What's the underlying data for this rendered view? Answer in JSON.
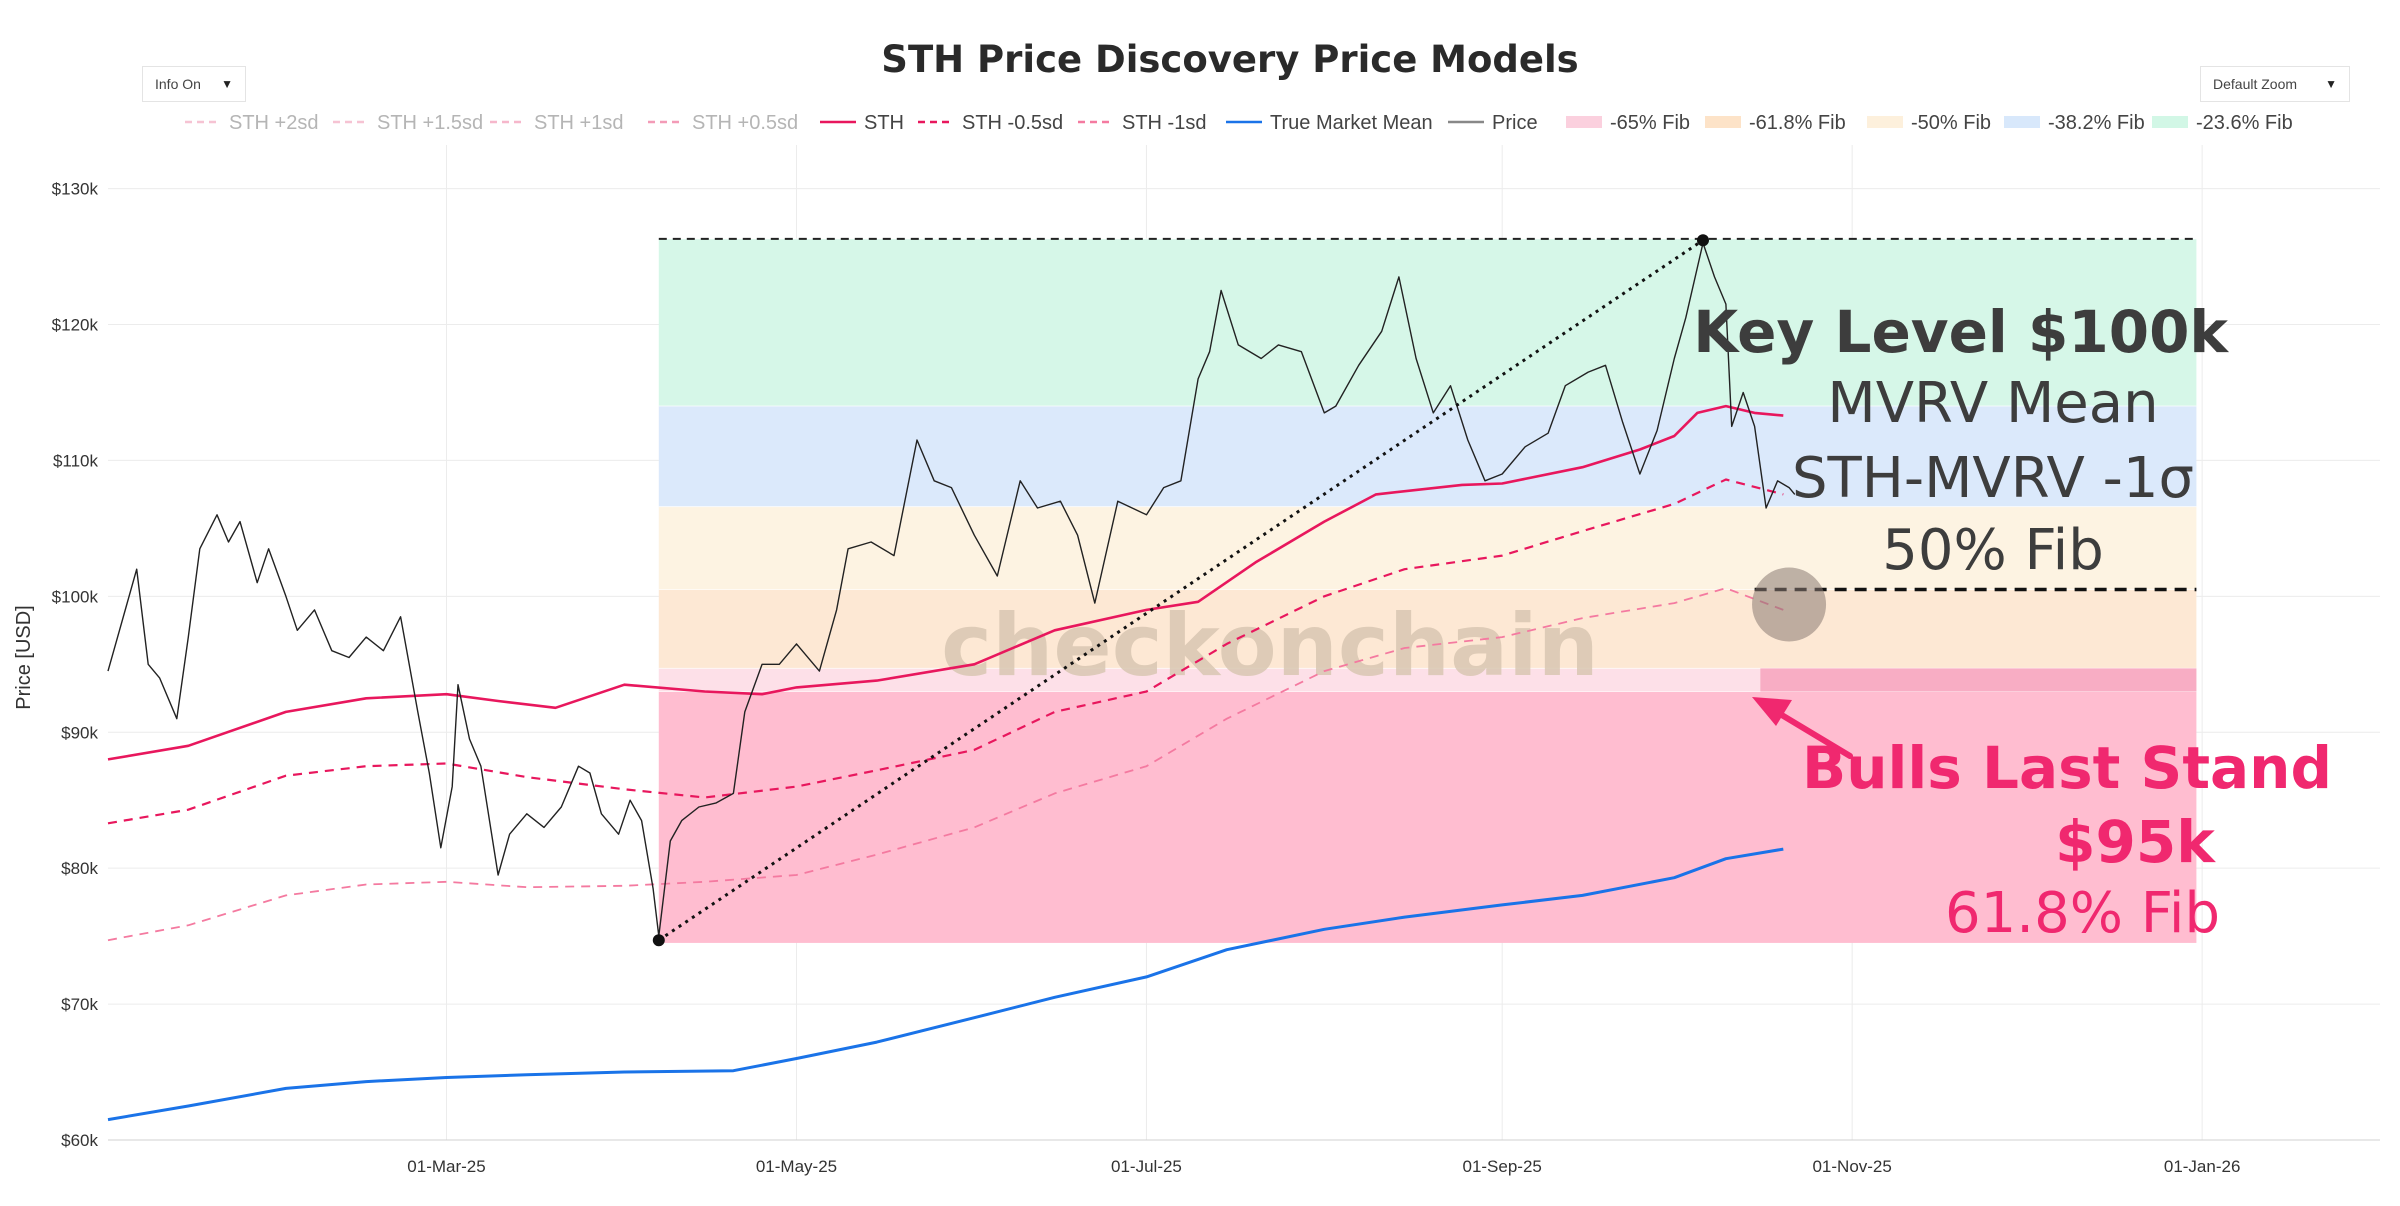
{
  "controls": {
    "info_toggle": "Info On",
    "zoom_select": "Default Zoom",
    "caret": "▼"
  },
  "colors": {
    "sth": "#e8175d",
    "sth_light": "#f47aa0",
    "sth_faded": "#f6b7cb",
    "true_market_mean": "#1a73e8",
    "price": "#222222",
    "fib_65": "#ffb8cc",
    "fib_618": "#fde3c8",
    "fib_50": "#fdf0dc",
    "fib_382": "#d8e8fb",
    "fib_236": "#d2f7e6",
    "annotation_pink": "#f0286f",
    "annotation_dark": "#3d3d3d"
  },
  "chart_data": {
    "type": "line",
    "title": "STH Price Discovery Price Models",
    "xlabel": "",
    "ylabel": "Price [USD]",
    "ylim": [
      60000,
      131000
    ],
    "x_range": [
      "2025-01-01",
      "2026-02-01"
    ],
    "y_ticks": [
      {
        "value": 60000,
        "label": "$60k"
      },
      {
        "value": 70000,
        "label": "$70k"
      },
      {
        "value": 80000,
        "label": "$80k"
      },
      {
        "value": 90000,
        "label": "$90k"
      },
      {
        "value": 100000,
        "label": "$100k"
      },
      {
        "value": 110000,
        "label": "$110k"
      },
      {
        "value": 120000,
        "label": "$120k"
      },
      {
        "value": 130000,
        "label": "$130k"
      }
    ],
    "x_ticks": [
      {
        "date": "2025-03-01",
        "label": "01-Mar-25"
      },
      {
        "date": "2025-05-01",
        "label": "01-May-25"
      },
      {
        "date": "2025-07-01",
        "label": "01-Jul-25"
      },
      {
        "date": "2025-09-01",
        "label": "01-Sep-25"
      },
      {
        "date": "2025-11-01",
        "label": "01-Nov-25"
      },
      {
        "date": "2026-01-01",
        "label": "01-Jan-26"
      }
    ],
    "legend": [
      {
        "label": "STH +2sd",
        "style": "dashed",
        "color": "#f6c3d3",
        "faded": true
      },
      {
        "label": "STH +1.5sd",
        "style": "dashed",
        "color": "#f6c3d3",
        "faded": true
      },
      {
        "label": "STH +1sd",
        "style": "dashed",
        "color": "#f6b7cb",
        "faded": true
      },
      {
        "label": "STH +0.5sd",
        "style": "dashed",
        "color": "#f39bb7",
        "faded": true
      },
      {
        "label": "STH",
        "style": "solid",
        "color": "#e8175d",
        "faded": false
      },
      {
        "label": "STH -0.5sd",
        "style": "dashed",
        "color": "#e8175d",
        "faded": false
      },
      {
        "label": "STH -1sd",
        "style": "dashed",
        "color": "#f47aa0",
        "faded": false
      },
      {
        "label": "True Market Mean",
        "style": "solid",
        "color": "#1a73e8",
        "faded": false
      },
      {
        "label": "Price",
        "style": "solid",
        "color": "#888888",
        "faded": false
      },
      {
        "label": "-65% Fib",
        "style": "box",
        "color": "#fbd0de",
        "faded": false
      },
      {
        "label": "-61.8% Fib",
        "style": "box",
        "color": "#fde3c8",
        "faded": false
      },
      {
        "label": "-50% Fib",
        "style": "box",
        "color": "#fdf0dc",
        "faded": false
      },
      {
        "label": "-38.2% Fib",
        "style": "box",
        "color": "#d8e8fb",
        "faded": false
      },
      {
        "label": "-23.6% Fib",
        "style": "box",
        "color": "#d2f7e6",
        "faded": false
      }
    ],
    "fib_zones": {
      "start": "2025-04-07",
      "end": "2025-12-31",
      "bands": [
        {
          "name": "-65% Fib",
          "from": 74500,
          "to": 93000,
          "color": "#ffbdd0"
        },
        {
          "name": "-61.8% Fib (pink strip)",
          "from": 93000,
          "to": 94700,
          "color": "#fde0e8"
        },
        {
          "name": "-61.8% Fib",
          "from": 94700,
          "to": 100500,
          "color": "#fde8d4"
        },
        {
          "name": "-50% Fib",
          "from": 100500,
          "to": 106600,
          "color": "#fdf3e2"
        },
        {
          "name": "-38.2% Fib",
          "from": 106600,
          "to": 114000,
          "color": "#dbe9fb"
        },
        {
          "name": "-23.6% Fib",
          "from": 114000,
          "to": 126300,
          "color": "#d6f7e8"
        }
      ],
      "top_line": 126300,
      "bottom_line": 74500
    },
    "series": [
      {
        "name": "STH",
        "style": "solid",
        "points": [
          [
            "2025-01-01",
            88000
          ],
          [
            "2025-01-15",
            89000
          ],
          [
            "2025-02-01",
            91500
          ],
          [
            "2025-02-15",
            92500
          ],
          [
            "2025-03-01",
            92800
          ],
          [
            "2025-03-10",
            92300
          ],
          [
            "2025-03-20",
            91800
          ],
          [
            "2025-04-01",
            93500
          ],
          [
            "2025-04-15",
            93000
          ],
          [
            "2025-04-25",
            92800
          ],
          [
            "2025-05-01",
            93300
          ],
          [
            "2025-05-15",
            93800
          ],
          [
            "2025-06-01",
            95000
          ],
          [
            "2025-06-15",
            97500
          ],
          [
            "2025-07-01",
            99000
          ],
          [
            "2025-07-10",
            99600
          ],
          [
            "2025-07-20",
            102500
          ],
          [
            "2025-08-01",
            105500
          ],
          [
            "2025-08-10",
            107500
          ],
          [
            "2025-08-25",
            108200
          ],
          [
            "2025-09-01",
            108300
          ],
          [
            "2025-09-15",
            109500
          ],
          [
            "2025-09-25",
            110800
          ],
          [
            "2025-10-01",
            111800
          ],
          [
            "2025-10-05",
            113500
          ],
          [
            "2025-10-10",
            114000
          ],
          [
            "2025-10-15",
            113500
          ],
          [
            "2025-10-20",
            113300
          ]
        ]
      },
      {
        "name": "STH -0.5sd",
        "style": "dashed",
        "points": [
          [
            "2025-01-01",
            83300
          ],
          [
            "2025-01-15",
            84300
          ],
          [
            "2025-02-01",
            86800
          ],
          [
            "2025-02-15",
            87500
          ],
          [
            "2025-03-01",
            87700
          ],
          [
            "2025-03-15",
            86700
          ],
          [
            "2025-04-01",
            85800
          ],
          [
            "2025-04-15",
            85200
          ],
          [
            "2025-05-01",
            86000
          ],
          [
            "2025-05-15",
            87200
          ],
          [
            "2025-06-01",
            88700
          ],
          [
            "2025-06-15",
            91500
          ],
          [
            "2025-07-01",
            93000
          ],
          [
            "2025-07-15",
            96500
          ],
          [
            "2025-08-01",
            100000
          ],
          [
            "2025-08-15",
            102000
          ],
          [
            "2025-09-01",
            103000
          ],
          [
            "2025-09-15",
            104800
          ],
          [
            "2025-10-01",
            106800
          ],
          [
            "2025-10-10",
            108600
          ],
          [
            "2025-10-20",
            107500
          ]
        ]
      },
      {
        "name": "STH -1sd",
        "style": "dashed",
        "points": [
          [
            "2025-01-01",
            74700
          ],
          [
            "2025-01-15",
            75800
          ],
          [
            "2025-02-01",
            78000
          ],
          [
            "2025-02-15",
            78800
          ],
          [
            "2025-03-01",
            79000
          ],
          [
            "2025-03-15",
            78600
          ],
          [
            "2025-04-01",
            78700
          ],
          [
            "2025-04-15",
            79000
          ],
          [
            "2025-05-01",
            79500
          ],
          [
            "2025-05-15",
            81000
          ],
          [
            "2025-06-01",
            83000
          ],
          [
            "2025-06-15",
            85500
          ],
          [
            "2025-07-01",
            87500
          ],
          [
            "2025-07-15",
            91000
          ],
          [
            "2025-08-01",
            94500
          ],
          [
            "2025-08-15",
            96200
          ],
          [
            "2025-09-01",
            97000
          ],
          [
            "2025-09-15",
            98400
          ],
          [
            "2025-10-01",
            99500
          ],
          [
            "2025-10-10",
            100600
          ],
          [
            "2025-10-20",
            99000
          ]
        ]
      },
      {
        "name": "True Market Mean",
        "style": "solid",
        "points": [
          [
            "2025-01-01",
            61500
          ],
          [
            "2025-01-15",
            62500
          ],
          [
            "2025-02-01",
            63800
          ],
          [
            "2025-02-15",
            64300
          ],
          [
            "2025-03-01",
            64600
          ],
          [
            "2025-03-15",
            64800
          ],
          [
            "2025-04-01",
            65000
          ],
          [
            "2025-04-20",
            65100
          ],
          [
            "2025-05-01",
            66000
          ],
          [
            "2025-05-15",
            67200
          ],
          [
            "2025-06-01",
            69000
          ],
          [
            "2025-06-15",
            70500
          ],
          [
            "2025-07-01",
            72000
          ],
          [
            "2025-07-15",
            74000
          ],
          [
            "2025-08-01",
            75500
          ],
          [
            "2025-08-15",
            76400
          ],
          [
            "2025-09-01",
            77300
          ],
          [
            "2025-09-15",
            78000
          ],
          [
            "2025-10-01",
            79300
          ],
          [
            "2025-10-10",
            80700
          ],
          [
            "2025-10-20",
            81400
          ]
        ]
      },
      {
        "name": "Price",
        "style": "solid",
        "points": [
          [
            "2025-01-01",
            94500
          ],
          [
            "2025-01-03",
            97500
          ],
          [
            "2025-01-06",
            102000
          ],
          [
            "2025-01-08",
            95000
          ],
          [
            "2025-01-10",
            94000
          ],
          [
            "2025-01-13",
            91000
          ],
          [
            "2025-01-15",
            97000
          ],
          [
            "2025-01-17",
            103500
          ],
          [
            "2025-01-20",
            106000
          ],
          [
            "2025-01-22",
            104000
          ],
          [
            "2025-01-24",
            105500
          ],
          [
            "2025-01-27",
            101000
          ],
          [
            "2025-01-29",
            103500
          ],
          [
            "2025-02-01",
            100000
          ],
          [
            "2025-02-03",
            97500
          ],
          [
            "2025-02-06",
            99000
          ],
          [
            "2025-02-09",
            96000
          ],
          [
            "2025-02-12",
            95500
          ],
          [
            "2025-02-15",
            97000
          ],
          [
            "2025-02-18",
            96000
          ],
          [
            "2025-02-21",
            98500
          ],
          [
            "2025-02-24",
            91500
          ],
          [
            "2025-02-26",
            87000
          ],
          [
            "2025-02-28",
            81500
          ],
          [
            "2025-03-02",
            86000
          ],
          [
            "2025-03-03",
            93500
          ],
          [
            "2025-03-05",
            89500
          ],
          [
            "2025-03-07",
            87500
          ],
          [
            "2025-03-10",
            79500
          ],
          [
            "2025-03-12",
            82500
          ],
          [
            "2025-03-15",
            84000
          ],
          [
            "2025-03-18",
            83000
          ],
          [
            "2025-03-21",
            84500
          ],
          [
            "2025-03-24",
            87500
          ],
          [
            "2025-03-26",
            87000
          ],
          [
            "2025-03-28",
            84000
          ],
          [
            "2025-03-31",
            82500
          ],
          [
            "2025-04-02",
            85000
          ],
          [
            "2025-04-04",
            83500
          ],
          [
            "2025-04-06",
            78500
          ],
          [
            "2025-04-07",
            75000
          ],
          [
            "2025-04-09",
            82000
          ],
          [
            "2025-04-11",
            83500
          ],
          [
            "2025-04-14",
            84500
          ],
          [
            "2025-04-17",
            84800
          ],
          [
            "2025-04-20",
            85500
          ],
          [
            "2025-04-22",
            91500
          ],
          [
            "2025-04-25",
            95000
          ],
          [
            "2025-04-28",
            95000
          ],
          [
            "2025-05-01",
            96500
          ],
          [
            "2025-05-05",
            94500
          ],
          [
            "2025-05-08",
            99000
          ],
          [
            "2025-05-10",
            103500
          ],
          [
            "2025-05-14",
            104000
          ],
          [
            "2025-05-18",
            103000
          ],
          [
            "2025-05-22",
            111500
          ],
          [
            "2025-05-25",
            108500
          ],
          [
            "2025-05-28",
            108000
          ],
          [
            "2025-06-01",
            104500
          ],
          [
            "2025-06-05",
            101500
          ],
          [
            "2025-06-09",
            108500
          ],
          [
            "2025-06-12",
            106500
          ],
          [
            "2025-06-16",
            107000
          ],
          [
            "2025-06-19",
            104500
          ],
          [
            "2025-06-22",
            99500
          ],
          [
            "2025-06-26",
            107000
          ],
          [
            "2025-07-01",
            106000
          ],
          [
            "2025-07-04",
            108000
          ],
          [
            "2025-07-07",
            108500
          ],
          [
            "2025-07-10",
            116000
          ],
          [
            "2025-07-12",
            118000
          ],
          [
            "2025-07-14",
            122500
          ],
          [
            "2025-07-17",
            118500
          ],
          [
            "2025-07-21",
            117500
          ],
          [
            "2025-07-24",
            118500
          ],
          [
            "2025-07-28",
            118000
          ],
          [
            "2025-08-01",
            113500
          ],
          [
            "2025-08-03",
            114000
          ],
          [
            "2025-08-07",
            117000
          ],
          [
            "2025-08-11",
            119500
          ],
          [
            "2025-08-14",
            123500
          ],
          [
            "2025-08-17",
            117500
          ],
          [
            "2025-08-20",
            113500
          ],
          [
            "2025-08-23",
            115500
          ],
          [
            "2025-08-26",
            111500
          ],
          [
            "2025-08-29",
            108500
          ],
          [
            "2025-09-01",
            109000
          ],
          [
            "2025-09-05",
            111000
          ],
          [
            "2025-09-09",
            112000
          ],
          [
            "2025-09-12",
            115500
          ],
          [
            "2025-09-16",
            116500
          ],
          [
            "2025-09-19",
            117000
          ],
          [
            "2025-09-22",
            112800
          ],
          [
            "2025-09-25",
            109000
          ],
          [
            "2025-09-28",
            112200
          ],
          [
            "2025-10-01",
            117500
          ],
          [
            "2025-10-03",
            120500
          ],
          [
            "2025-10-06",
            126000
          ],
          [
            "2025-10-08",
            123500
          ],
          [
            "2025-10-10",
            121500
          ],
          [
            "2025-10-11",
            112500
          ],
          [
            "2025-10-13",
            115000
          ],
          [
            "2025-10-15",
            112500
          ],
          [
            "2025-10-17",
            106500
          ],
          [
            "2025-10-19",
            108500
          ],
          [
            "2025-10-21",
            108000
          ],
          [
            "2025-10-22",
            107500
          ]
        ]
      }
    ],
    "overlays": {
      "fib_top_dashed": {
        "value": 126300,
        "from": "2025-04-07",
        "to": "2025-12-31"
      },
      "key_level_dashed": {
        "value": 100500,
        "from": "2025-10-15",
        "to": "2025-12-31"
      },
      "trend_line": {
        "from": [
          "2025-04-07",
          74700
        ],
        "to": [
          "2025-10-06",
          126200
        ]
      },
      "marker_circle": {
        "date": "2025-10-21",
        "value": 99400
      },
      "bulls_highlight": {
        "from_date": "2025-10-16",
        "to_date": "2025-12-31",
        "from": 93000,
        "to": 94700
      }
    },
    "annotations": {
      "key_level_title": "Key Level $100k",
      "key_level_line1": "MVRV Mean",
      "key_level_line2": "STH-MVRV -1σ",
      "key_level_line3": "50% Fib",
      "bulls_title": "Bulls Last Stand",
      "bulls_value": "$95k",
      "bulls_fib": "61.8% Fib"
    },
    "watermark": "checkonchain"
  }
}
